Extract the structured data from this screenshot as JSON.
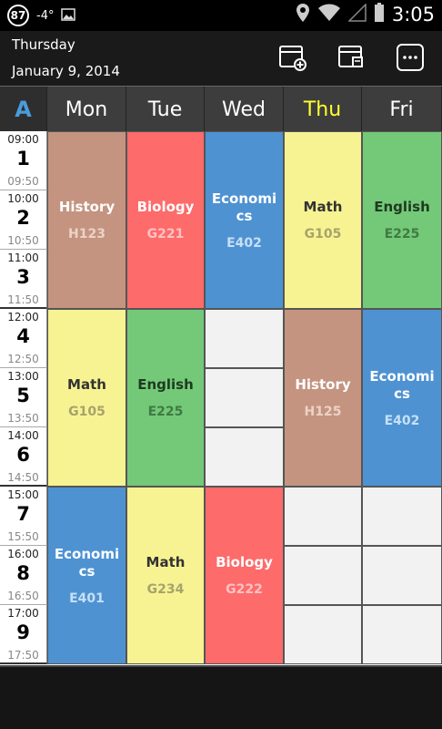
{
  "status_bar": {
    "badge": "87",
    "temperature": "-4°",
    "time": "3:05"
  },
  "header": {
    "day_name": "Thursday",
    "date": "January 9, 2014",
    "icons": [
      "add-schedule-icon",
      "edit-schedule-icon",
      "more-options-icon"
    ]
  },
  "week_label": "A",
  "days": [
    "Mon",
    "Tue",
    "Wed",
    "Thu",
    "Fri"
  ],
  "today": "Thu",
  "periods": [
    {
      "num": "1",
      "start": "09:00",
      "end": "09:50"
    },
    {
      "num": "2",
      "start": "10:00",
      "end": "10:50"
    },
    {
      "num": "3",
      "start": "11:00",
      "end": "11:50"
    },
    {
      "num": "4",
      "start": "12:00",
      "end": "12:50"
    },
    {
      "num": "5",
      "start": "13:00",
      "end": "13:50"
    },
    {
      "num": "6",
      "start": "14:00",
      "end": "14:50"
    },
    {
      "num": "7",
      "start": "15:00",
      "end": "15:50"
    },
    {
      "num": "8",
      "start": "16:00",
      "end": "16:50"
    },
    {
      "num": "9",
      "start": "17:00",
      "end": "17:50"
    }
  ],
  "lessons": [
    {
      "day": 0,
      "start_period": 1,
      "span": 3,
      "subject": "History",
      "room": "H123",
      "color": "#c49480",
      "text_color": "#ffffff",
      "room_color": "#ecd2c6"
    },
    {
      "day": 1,
      "start_period": 1,
      "span": 3,
      "subject": "Biology",
      "room": "G221",
      "color": "#fe6b6b",
      "text_color": "#ffffff",
      "room_color": "#ffc2c2"
    },
    {
      "day": 2,
      "start_period": 1,
      "span": 3,
      "subject": "Economics",
      "room": "E402",
      "color": "#4e92d2",
      "text_color": "#ffffff",
      "room_color": "#c6e0f6"
    },
    {
      "day": 3,
      "start_period": 1,
      "span": 3,
      "subject": "Math",
      "room": "G105",
      "color": "#f8f392",
      "text_color": "#333333",
      "room_color": "#a6a36c"
    },
    {
      "day": 4,
      "start_period": 1,
      "span": 3,
      "subject": "English",
      "room": "E225",
      "color": "#74c979",
      "text_color": "#1f3a20",
      "room_color": "#3f7a43"
    },
    {
      "day": 0,
      "start_period": 4,
      "span": 3,
      "subject": "Math",
      "room": "G105",
      "color": "#f8f392",
      "text_color": "#333333",
      "room_color": "#a6a36c"
    },
    {
      "day": 1,
      "start_period": 4,
      "span": 3,
      "subject": "English",
      "room": "E225",
      "color": "#74c979",
      "text_color": "#1f3a20",
      "room_color": "#3f7a43"
    },
    {
      "day": 3,
      "start_period": 4,
      "span": 3,
      "subject": "History",
      "room": "H125",
      "color": "#c49480",
      "text_color": "#ffffff",
      "room_color": "#ecd2c6"
    },
    {
      "day": 4,
      "start_period": 4,
      "span": 3,
      "subject": "Economics",
      "room": "E402",
      "color": "#4e92d2",
      "text_color": "#ffffff",
      "room_color": "#c6e0f6"
    },
    {
      "day": 0,
      "start_period": 7,
      "span": 3,
      "subject": "Economics",
      "room": "E401",
      "color": "#4e92d2",
      "text_color": "#ffffff",
      "room_color": "#c6e0f6"
    },
    {
      "day": 1,
      "start_period": 7,
      "span": 3,
      "subject": "Math",
      "room": "G234",
      "color": "#f8f392",
      "text_color": "#333333",
      "room_color": "#a6a36c"
    },
    {
      "day": 2,
      "start_period": 7,
      "span": 3,
      "subject": "Biology",
      "room": "G222",
      "color": "#fe6b6b",
      "text_color": "#ffffff",
      "room_color": "#ffc2c2"
    }
  ],
  "empty_slots": [
    {
      "day": 2,
      "period": 4
    },
    {
      "day": 2,
      "period": 5
    },
    {
      "day": 2,
      "period": 6
    },
    {
      "day": 3,
      "period": 7
    },
    {
      "day": 3,
      "period": 8
    },
    {
      "day": 3,
      "period": 9
    },
    {
      "day": 4,
      "period": 7
    },
    {
      "day": 4,
      "period": 8
    },
    {
      "day": 4,
      "period": 9
    }
  ]
}
